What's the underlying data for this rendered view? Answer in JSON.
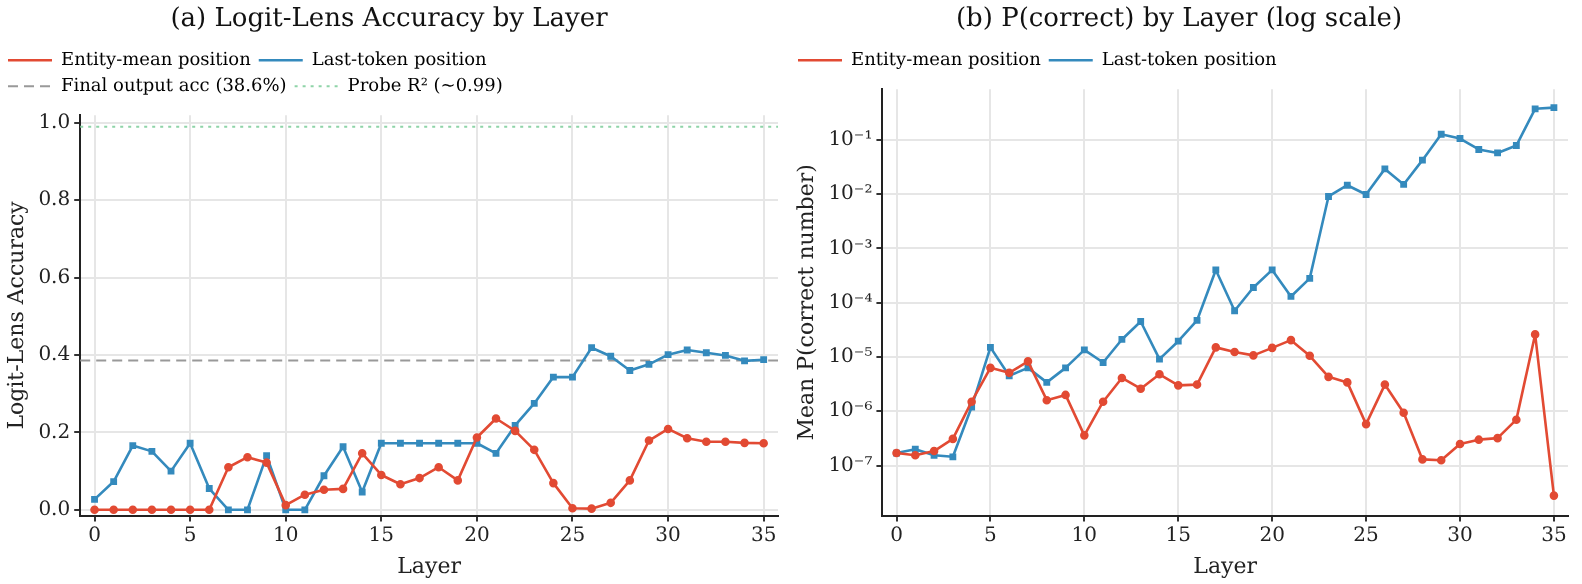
{
  "chart_data": [
    {
      "type": "line",
      "title": "(a) Logit-Lens Accuracy by Layer",
      "xlabel": "Layer",
      "ylabel": "Logit-Lens Accuracy",
      "x": [
        0,
        1,
        2,
        3,
        4,
        5,
        6,
        7,
        8,
        9,
        10,
        11,
        12,
        13,
        14,
        15,
        16,
        17,
        18,
        19,
        20,
        21,
        22,
        23,
        24,
        25,
        26,
        27,
        28,
        29,
        30,
        31,
        32,
        33,
        34,
        35
      ],
      "series": [
        {
          "name": "Entity-mean position",
          "color": "#e24a33",
          "marker": "circle",
          "values": [
            0,
            0,
            0,
            0,
            0,
            0,
            0,
            0.11,
            0.136,
            0.122,
            0.012,
            0.039,
            0.052,
            0.054,
            0.146,
            0.09,
            0.066,
            0.082,
            0.11,
            0.076,
            0.187,
            0.236,
            0.204,
            0.155,
            0.069,
            0.004,
            0.003,
            0.018,
            0.076,
            0.179,
            0.209,
            0.185,
            0.176,
            0.176,
            0.173,
            0.172
          ]
        },
        {
          "name": "Last-token position",
          "color": "#348abd",
          "marker": "square",
          "values": [
            0.027,
            0.073,
            0.166,
            0.151,
            0.1,
            0.172,
            0.055,
            0,
            0,
            0.14,
            0,
            0,
            0.088,
            0.163,
            0.046,
            0.172,
            0.172,
            0.172,
            0.172,
            0.172,
            0.172,
            0.146,
            0.218,
            0.275,
            0.343,
            0.343,
            0.419,
            0.397,
            0.36,
            0.376,
            0.401,
            0.413,
            0.406,
            0.399,
            0.385,
            0.388
          ]
        }
      ],
      "ref_lines": [
        {
          "axis": "y",
          "value": 0.386,
          "label": "Final output acc (38.6%)",
          "color": "#999999",
          "line_style": "dashed"
        },
        {
          "axis": "y",
          "value": 0.99,
          "label": "Probe R² (~0.99)",
          "color": "#8fd4a8",
          "line_style": "dotted"
        }
      ],
      "xlim": [
        -0.75,
        35.75
      ],
      "xticks": [
        0,
        5,
        10,
        15,
        20,
        25,
        30,
        35
      ],
      "ylim": [
        -0.015,
        1.02
      ],
      "yticks": [
        {
          "value": 0,
          "label": "0.0"
        },
        {
          "value": 0.2,
          "label": "0.2"
        },
        {
          "value": 0.4,
          "label": "0.4"
        },
        {
          "value": 0.6,
          "label": "0.6"
        },
        {
          "value": 0.8,
          "label": "0.8"
        },
        {
          "value": 1,
          "label": "1.0"
        }
      ],
      "grid": true,
      "legend": "top left",
      "line_style": "solid"
    },
    {
      "type": "line",
      "title": "(b) P(correct) by Layer (log scale)",
      "xlabel": "Layer",
      "ylabel": "Mean P(correct number)",
      "x": [
        0,
        1,
        2,
        3,
        4,
        5,
        6,
        7,
        8,
        9,
        10,
        11,
        12,
        13,
        14,
        15,
        16,
        17,
        18,
        19,
        20,
        21,
        22,
        23,
        24,
        25,
        26,
        27,
        28,
        29,
        30,
        31,
        32,
        33,
        34,
        35
      ],
      "series": [
        {
          "name": "Entity-mean position",
          "color": "#e24a33",
          "marker": "circle",
          "values": [
            1.7e-07,
            1.55e-07,
            1.85e-07,
            3.1e-07,
            1.5e-06,
            6.3e-06,
            5.1e-06,
            8.3e-06,
            1.6e-06,
            2e-06,
            3.6e-07,
            1.5e-06,
            4.1e-06,
            2.6e-06,
            4.8e-06,
            3e-06,
            3.1e-06,
            1.5e-05,
            1.23e-05,
            1.07e-05,
            1.47e-05,
            2.04e-05,
            1.05e-05,
            4.3e-06,
            3.4e-06,
            5.8e-07,
            3.1e-06,
            9.4e-07,
            1.3e-07,
            1.25e-07,
            2.5e-07,
            3e-07,
            3.2e-07,
            7e-07,
            2.6e-05,
            2.8e-08
          ]
        },
        {
          "name": "Last-token position",
          "color": "#348abd",
          "marker": "square",
          "values": [
            1.7e-07,
            2e-07,
            1.55e-07,
            1.45e-07,
            1.2e-06,
            1.5e-05,
            4.5e-06,
            6.3e-06,
            3.4e-06,
            6.3e-06,
            1.35e-05,
            7.9e-06,
            2.1e-05,
            4.5e-05,
            9.1e-06,
            1.95e-05,
            4.7e-05,
            0.0004,
            7.1e-05,
            0.00019,
            0.0004,
            0.00013,
            0.00028,
            0.009,
            0.0145,
            0.0098,
            0.029,
            0.015,
            0.042,
            0.126,
            0.105,
            0.066,
            0.057,
            0.078,
            0.37,
            0.39
          ]
        }
      ],
      "xlim": [
        -0.75,
        35.75
      ],
      "xticks": [
        0,
        5,
        10,
        15,
        20,
        25,
        30,
        35
      ],
      "ylim": [
        1.2e-08,
        0.85
      ],
      "yticks": [
        {
          "value": 1e-07,
          "label": "10⁻⁷"
        },
        {
          "value": 1e-06,
          "label": "10⁻⁶"
        },
        {
          "value": 1e-05,
          "label": "10⁻⁵"
        },
        {
          "value": 0.0001,
          "label": "10⁻⁴"
        },
        {
          "value": 0.001,
          "label": "10⁻³"
        },
        {
          "value": 0.01,
          "label": "10⁻²"
        },
        {
          "value": 0.1,
          "label": "10⁻¹"
        }
      ],
      "log": "y",
      "grid": true,
      "legend": "top left",
      "line_style": "solid"
    }
  ]
}
